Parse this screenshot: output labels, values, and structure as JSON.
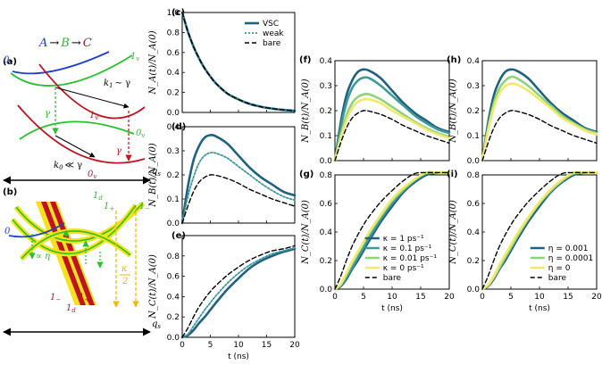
{
  "colors": {
    "dark": "#1f6180",
    "mid": "#3d9a99",
    "light": "#8fd27e",
    "yellow": "#f2e96b",
    "bare": "#000000",
    "green": "#27c22b",
    "red": "#c1121f",
    "blue": "#1f3fcc",
    "band": "#f5e21a"
  },
  "diagram_a": {
    "label": "(a)",
    "reaction": {
      "A": "A",
      "B": "B",
      "C": "C",
      "arrow": "→"
    },
    "curve_labels": {
      "blue_0v": "0",
      "green_1v": "1",
      "red_1v": "1",
      "green_0v": "0",
      "red_0v": "0",
      "v_sub": "v"
    },
    "k1": "k",
    "k1_sub": "1",
    "k1_rel": "∼ γ",
    "k0": "k",
    "k0_sub": "0",
    "k0_rel": "≪ γ",
    "gamma": "γ",
    "qs": "q",
    "qs_sub": "s"
  },
  "diagram_b": {
    "label": "(b)",
    "labels": {
      "zero": "0",
      "one_d_top": "1",
      "d_sub": "d",
      "one_plus_top": "1",
      "plus": "+",
      "one_minus_top": "1",
      "minus": "−",
      "one_minus_bot": "1",
      "one_plus_bot": "1",
      "one_d_bot": "1"
    },
    "prop_eta": "∝ η",
    "kappa_num": "κ",
    "kappa_den": "2",
    "qs": "q",
    "qs_sub": "s"
  },
  "chart_data": [
    {
      "panel": "(c)",
      "type": "line",
      "xlabel": "",
      "ylabel": "N_A(t)/N_A(0)",
      "xlim": [
        0,
        20
      ],
      "ylim": [
        0,
        1
      ],
      "yticks": [
        0,
        0.2,
        0.4,
        0.6,
        0.8,
        1.0
      ],
      "yticklabels": [
        "0.0",
        "0.2",
        "0.4",
        "0.6",
        "0.8",
        "1.0"
      ],
      "grid": false,
      "legend": "top-right",
      "x": [
        0,
        1,
        2,
        3,
        4,
        5,
        6,
        8,
        10,
        12,
        14,
        16,
        18,
        20
      ],
      "series": [
        {
          "name": "VSC",
          "style": "solid",
          "color": "dark",
          "values": [
            1.0,
            0.81,
            0.66,
            0.54,
            0.44,
            0.36,
            0.29,
            0.19,
            0.13,
            0.085,
            0.057,
            0.038,
            0.025,
            0.017
          ]
        },
        {
          "name": "weak",
          "style": "dotted",
          "color": "mid",
          "values": [
            1.0,
            0.81,
            0.66,
            0.54,
            0.44,
            0.36,
            0.29,
            0.19,
            0.13,
            0.085,
            0.057,
            0.038,
            0.025,
            0.017
          ]
        },
        {
          "name": "bare",
          "style": "dashed",
          "color": "bare",
          "values": [
            1.0,
            0.81,
            0.66,
            0.54,
            0.44,
            0.36,
            0.29,
            0.19,
            0.13,
            0.085,
            0.057,
            0.038,
            0.025,
            0.017
          ]
        }
      ]
    },
    {
      "panel": "(d)",
      "type": "line",
      "xlabel": "",
      "ylabel": "N_B(t)/N_A(0)",
      "xlim": [
        0,
        20
      ],
      "ylim": [
        0,
        0.4
      ],
      "yticks": [
        0,
        0.1,
        0.2,
        0.3,
        0.4
      ],
      "yticklabels": [
        "0.0",
        "0.1",
        "0.2",
        "0.3",
        "0.4"
      ],
      "grid": false,
      "x": [
        0,
        1,
        2,
        3,
        4,
        5,
        6,
        8,
        10,
        12,
        14,
        16,
        18,
        20
      ],
      "series": [
        {
          "name": "VSC",
          "style": "solid",
          "color": "dark",
          "values": [
            0,
            0.15,
            0.26,
            0.32,
            0.355,
            0.365,
            0.36,
            0.33,
            0.28,
            0.23,
            0.19,
            0.16,
            0.13,
            0.115
          ]
        },
        {
          "name": "weak",
          "style": "dotted",
          "color": "mid",
          "values": [
            0,
            0.11,
            0.19,
            0.25,
            0.28,
            0.292,
            0.29,
            0.27,
            0.235,
            0.2,
            0.165,
            0.135,
            0.11,
            0.095
          ]
        },
        {
          "name": "bare",
          "style": "dashed",
          "color": "bare",
          "values": [
            0,
            0.07,
            0.13,
            0.17,
            0.19,
            0.2,
            0.198,
            0.185,
            0.165,
            0.14,
            0.12,
            0.1,
            0.085,
            0.07
          ]
        }
      ]
    },
    {
      "panel": "(e)",
      "type": "line",
      "xlabel": "t (ns)",
      "ylabel": "N_C(t)/N_A(0)",
      "xlim": [
        0,
        20
      ],
      "ylim": [
        0,
        1
      ],
      "xticks": [
        0,
        5,
        10,
        15,
        20
      ],
      "xticklabels": [
        "0",
        "5",
        "10",
        "15",
        "20"
      ],
      "yticks": [
        0,
        0.2,
        0.4,
        0.6,
        0.8
      ],
      "yticklabels": [
        "0.0",
        "0.2",
        "0.4",
        "0.6",
        "0.8"
      ],
      "grid": false,
      "x": [
        0,
        1,
        2,
        3,
        4,
        5,
        6,
        8,
        10,
        12,
        14,
        16,
        18,
        20
      ],
      "series": [
        {
          "name": "VSC",
          "style": "solid",
          "color": "dark",
          "values": [
            0,
            0.02,
            0.07,
            0.14,
            0.2,
            0.27,
            0.34,
            0.47,
            0.58,
            0.68,
            0.75,
            0.8,
            0.84,
            0.87
          ]
        },
        {
          "name": "weak",
          "style": "dotted",
          "color": "mid",
          "values": [
            0,
            0.03,
            0.11,
            0.19,
            0.27,
            0.34,
            0.41,
            0.53,
            0.63,
            0.71,
            0.77,
            0.82,
            0.85,
            0.88
          ]
        },
        {
          "name": "bare",
          "style": "dashed",
          "color": "bare",
          "values": [
            0,
            0.09,
            0.2,
            0.3,
            0.38,
            0.45,
            0.51,
            0.61,
            0.69,
            0.76,
            0.81,
            0.85,
            0.87,
            0.9
          ]
        }
      ]
    },
    {
      "panel": "(f)",
      "type": "line",
      "xlabel": "",
      "ylabel": "N_B(t)/N_A(0)",
      "xlim": [
        0,
        20
      ],
      "ylim": [
        0,
        0.4
      ],
      "yticks": [
        0,
        0.1,
        0.2,
        0.3,
        0.4
      ],
      "yticklabels": [
        "0.0",
        "0.1",
        "0.2",
        "0.3",
        "0.4"
      ],
      "grid": false,
      "x": [
        0,
        1,
        2,
        3,
        4,
        5,
        6,
        8,
        10,
        12,
        14,
        16,
        18,
        20
      ],
      "series": [
        {
          "name": "κ = 1 ps⁻¹",
          "style": "solid",
          "color": "dark",
          "values": [
            0,
            0.15,
            0.26,
            0.32,
            0.355,
            0.365,
            0.36,
            0.33,
            0.28,
            0.23,
            0.19,
            0.16,
            0.13,
            0.115
          ]
        },
        {
          "name": "κ = 0.1 ps⁻¹",
          "style": "solid",
          "color": "mid",
          "values": [
            0,
            0.13,
            0.23,
            0.29,
            0.32,
            0.332,
            0.33,
            0.3,
            0.26,
            0.22,
            0.18,
            0.15,
            0.125,
            0.11
          ]
        },
        {
          "name": "κ = 0.01 ps⁻¹",
          "style": "solid",
          "color": "light",
          "values": [
            0,
            0.1,
            0.18,
            0.23,
            0.255,
            0.265,
            0.265,
            0.245,
            0.215,
            0.185,
            0.155,
            0.13,
            0.11,
            0.095
          ]
        },
        {
          "name": "κ = 0 ps⁻¹",
          "style": "solid",
          "color": "yellow",
          "values": [
            0,
            0.09,
            0.16,
            0.21,
            0.235,
            0.245,
            0.245,
            0.23,
            0.2,
            0.175,
            0.15,
            0.125,
            0.105,
            0.09
          ]
        },
        {
          "name": "bare",
          "style": "dashed",
          "color": "bare",
          "values": [
            0,
            0.07,
            0.13,
            0.17,
            0.19,
            0.2,
            0.198,
            0.185,
            0.165,
            0.14,
            0.12,
            0.1,
            0.085,
            0.07
          ]
        }
      ]
    },
    {
      "panel": "(g)",
      "type": "line",
      "xlabel": "t (ns)",
      "ylabel": "N_C(t)/N_A(0)",
      "xlim": [
        0,
        20
      ],
      "ylim": [
        0,
        0.8
      ],
      "xticks": [
        0,
        5,
        10,
        15,
        20
      ],
      "xticklabels": [
        "0",
        "5",
        "10",
        "15",
        "20"
      ],
      "yticks": [
        0,
        0.2,
        0.4,
        0.6,
        0.8
      ],
      "yticklabels": [
        "0.0",
        "0.2",
        "0.4",
        "0.6",
        "0.8"
      ],
      "grid": false,
      "legend": "bottom-right",
      "x": [
        0,
        1,
        2,
        3,
        4,
        5,
        6,
        8,
        10,
        12,
        14,
        16,
        18,
        20
      ],
      "series": [
        {
          "name": "κ = 1 ps⁻¹",
          "style": "solid",
          "color": "dark",
          "values": [
            0,
            0.02,
            0.07,
            0.14,
            0.2,
            0.27,
            0.34,
            0.47,
            0.58,
            0.68,
            0.75,
            0.8,
            0.84,
            0.87
          ]
        },
        {
          "name": "κ = 0.1 ps⁻¹",
          "style": "solid",
          "color": "mid",
          "values": [
            0,
            0.025,
            0.08,
            0.15,
            0.22,
            0.29,
            0.36,
            0.49,
            0.6,
            0.69,
            0.76,
            0.81,
            0.85,
            0.875
          ]
        },
        {
          "name": "κ = 0.01 ps⁻¹",
          "style": "solid",
          "color": "light",
          "values": [
            0,
            0.03,
            0.1,
            0.18,
            0.25,
            0.32,
            0.39,
            0.51,
            0.62,
            0.7,
            0.77,
            0.82,
            0.85,
            0.88
          ]
        },
        {
          "name": "κ = 0 ps⁻¹",
          "style": "solid",
          "color": "yellow",
          "values": [
            0,
            0.035,
            0.11,
            0.19,
            0.26,
            0.33,
            0.4,
            0.52,
            0.63,
            0.71,
            0.77,
            0.82,
            0.86,
            0.885
          ]
        },
        {
          "name": "bare",
          "style": "dashed",
          "color": "bare",
          "values": [
            0,
            0.09,
            0.2,
            0.3,
            0.38,
            0.45,
            0.51,
            0.61,
            0.69,
            0.76,
            0.81,
            0.85,
            0.87,
            0.9
          ]
        }
      ]
    },
    {
      "panel": "(h)",
      "type": "line",
      "xlabel": "",
      "ylabel": "N_B(t)/N_A(0)",
      "xlim": [
        0,
        20
      ],
      "ylim": [
        0,
        0.4
      ],
      "yticks": [
        0,
        0.1,
        0.2,
        0.3,
        0.4
      ],
      "yticklabels": [
        "0.0",
        "0.1",
        "0.2",
        "0.3",
        "0.4"
      ],
      "grid": false,
      "x": [
        0,
        1,
        2,
        3,
        4,
        5,
        6,
        8,
        10,
        12,
        14,
        16,
        18,
        20
      ],
      "series": [
        {
          "name": "η = 0.001",
          "style": "solid",
          "color": "dark",
          "values": [
            0,
            0.15,
            0.26,
            0.32,
            0.355,
            0.365,
            0.36,
            0.33,
            0.28,
            0.23,
            0.19,
            0.16,
            0.13,
            0.115
          ]
        },
        {
          "name": "η = 0.0001",
          "style": "solid",
          "color": "light",
          "values": [
            0,
            0.13,
            0.23,
            0.29,
            0.32,
            0.335,
            0.33,
            0.3,
            0.26,
            0.22,
            0.18,
            0.15,
            0.125,
            0.11
          ]
        },
        {
          "name": "η = 0",
          "style": "solid",
          "color": "yellow",
          "values": [
            0,
            0.12,
            0.21,
            0.27,
            0.298,
            0.308,
            0.305,
            0.28,
            0.245,
            0.21,
            0.17,
            0.145,
            0.12,
            0.105
          ]
        },
        {
          "name": "bare",
          "style": "dashed",
          "color": "bare",
          "values": [
            0,
            0.07,
            0.13,
            0.17,
            0.19,
            0.2,
            0.198,
            0.185,
            0.165,
            0.14,
            0.12,
            0.1,
            0.085,
            0.07
          ]
        }
      ]
    },
    {
      "panel": "(i)",
      "type": "line",
      "xlabel": "t (ns)",
      "ylabel": "N_C(t)/N_A(0)",
      "xlim": [
        0,
        20
      ],
      "ylim": [
        0,
        0.8
      ],
      "xticks": [
        0,
        5,
        10,
        15,
        20
      ],
      "xticklabels": [
        "0",
        "5",
        "10",
        "15",
        "20"
      ],
      "yticks": [
        0,
        0.2,
        0.4,
        0.6,
        0.8
      ],
      "yticklabels": [
        "0.0",
        "0.2",
        "0.4",
        "0.6",
        "0.8"
      ],
      "grid": false,
      "legend": "bottom-right",
      "x": [
        0,
        1,
        2,
        3,
        4,
        5,
        6,
        8,
        10,
        12,
        14,
        16,
        18,
        20
      ],
      "series": [
        {
          "name": "η = 0.001",
          "style": "solid",
          "color": "dark",
          "values": [
            0,
            0.02,
            0.07,
            0.14,
            0.2,
            0.27,
            0.34,
            0.47,
            0.58,
            0.68,
            0.75,
            0.8,
            0.84,
            0.87
          ]
        },
        {
          "name": "η = 0.0001",
          "style": "solid",
          "color": "light",
          "values": [
            0,
            0.025,
            0.08,
            0.15,
            0.22,
            0.29,
            0.36,
            0.49,
            0.6,
            0.69,
            0.76,
            0.81,
            0.85,
            0.875
          ]
        },
        {
          "name": "η = 0",
          "style": "solid",
          "color": "yellow",
          "values": [
            0,
            0.03,
            0.09,
            0.17,
            0.24,
            0.31,
            0.38,
            0.5,
            0.61,
            0.7,
            0.77,
            0.82,
            0.855,
            0.88
          ]
        },
        {
          "name": "bare",
          "style": "dashed",
          "color": "bare",
          "values": [
            0,
            0.09,
            0.2,
            0.3,
            0.38,
            0.45,
            0.51,
            0.61,
            0.69,
            0.76,
            0.81,
            0.85,
            0.87,
            0.9
          ]
        }
      ]
    }
  ]
}
